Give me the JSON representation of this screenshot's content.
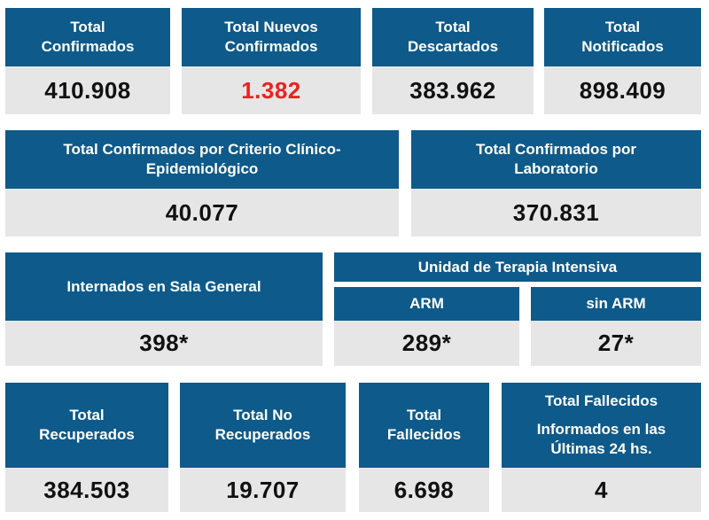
{
  "row1": [
    {
      "label1": "Total",
      "label2": "Confirmados",
      "value": "410.908"
    },
    {
      "label1": "Total Nuevos",
      "label2": "Confirmados",
      "value": "1.382"
    },
    {
      "label1": "Total",
      "label2": "Descartados",
      "value": "383.962"
    },
    {
      "label1": "Total",
      "label2": "Notificados",
      "value": "898.409"
    }
  ],
  "row2": [
    {
      "label1": "Total Confirmados por Criterio Clínico-",
      "label2": "Epidemiológico",
      "value": "40.077"
    },
    {
      "label1": "Total Confirmados por",
      "label2": "Laboratorio",
      "value": "370.831"
    }
  ],
  "row3": {
    "general": {
      "label": "Internados en Sala General",
      "value": "398*"
    },
    "uti": {
      "title": "Unidad de Terapia Intensiva",
      "arm": {
        "label": "ARM",
        "value": "289*"
      },
      "sin_arm": {
        "label": "sin ARM",
        "value": "27*"
      }
    }
  },
  "row4": [
    {
      "label1": "Total",
      "label2": "Recuperados",
      "value": "384.503"
    },
    {
      "label1": "Total No",
      "label2": "Recuperados",
      "value": "19.707"
    },
    {
      "label1": "Total",
      "label2": "Fallecidos",
      "value": "6.698"
    },
    {
      "label1": "Total Fallecidos",
      "label2": "Informados en las",
      "label3": "Últimas 24 hs.",
      "value": "4"
    }
  ],
  "colors": {
    "header": "#0e5a8a",
    "value_bg": "#e6e6e6",
    "highlight": "#e8231f"
  }
}
